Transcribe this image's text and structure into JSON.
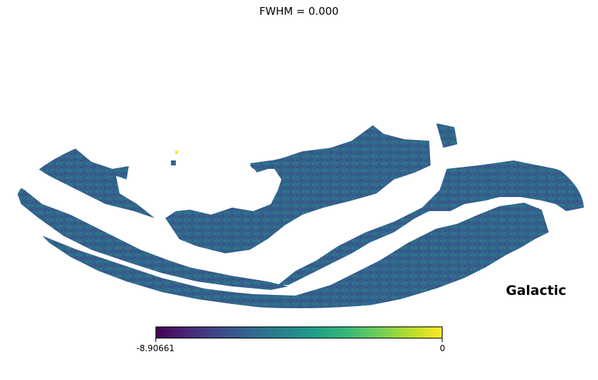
{
  "chart_data": {
    "type": "heatmap",
    "title": "FWHM = 0.000",
    "projection": "mollweide",
    "coord_label": "Galactic",
    "colormap": "viridis",
    "colorbar": {
      "min": -8.90661,
      "max": 0,
      "min_label": "-8.90661",
      "max_label": "0"
    },
    "dominant_value": -5.0,
    "unmasked_regions": [
      {
        "name": "northern-west-arc",
        "typical_value": -4.6
      },
      {
        "name": "central-band",
        "typical_value": -4.4
      },
      {
        "name": "eastern-band",
        "typical_value": -5.0
      },
      {
        "name": "south-west-arc",
        "typical_value": -5.0
      },
      {
        "name": "south-east-cap",
        "typical_value": -5.0
      }
    ],
    "bright_pixel_value": 0
  }
}
